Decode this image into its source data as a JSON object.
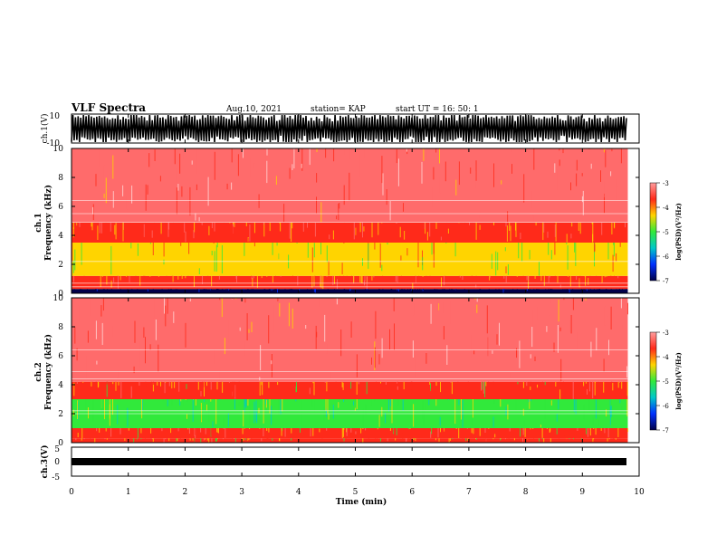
{
  "header": {
    "title": "VLF Spectra",
    "date": "Aug.10, 2021",
    "station": "station= KAP",
    "start": "start  UT  =   16: 50: 1"
  },
  "colorbar": {
    "label": "log(PSD)(V²/Hz)",
    "ticks": [
      "-3",
      "-4",
      "-5",
      "-6",
      "-7"
    ],
    "colors": [
      "#ff9d9d",
      "#ff2a1a",
      "#ffd400",
      "#31e93b",
      "#00c8c8",
      "#0030ff",
      "#00004a"
    ]
  },
  "chart_data": [
    {
      "type": "line",
      "name": "ch.1 waveform",
      "ylabel": "ch.1(V)",
      "ylim": [
        -10,
        10
      ],
      "yticks": [
        "10",
        "-10"
      ],
      "xlim": [
        0,
        10
      ],
      "note_values": "dense noisy voltage trace spanning most of the -10..10 V range for 0 to ~9.8 min"
    },
    {
      "type": "heatmap",
      "name": "ch.1 spectrogram",
      "ylabel": "ch.1\nFrequency  (kHz)",
      "ylim": [
        0,
        10
      ],
      "yticks": [
        "0",
        "2",
        "4",
        "6",
        "8",
        "10"
      ],
      "xlim": [
        0,
        10
      ],
      "data_end_min": 9.8,
      "bands": [
        {
          "freq": [
            0,
            0.3
          ],
          "level": -7.0
        },
        {
          "freq": [
            0.3,
            1.2
          ],
          "level": -3.8
        },
        {
          "freq": [
            1.2,
            3.5
          ],
          "level": -4.3
        },
        {
          "freq": [
            3.5,
            4.9
          ],
          "level": -3.8
        },
        {
          "freq": [
            4.9,
            10
          ],
          "level": -3.4
        }
      ],
      "lines_kHz": [
        0.45,
        0.7,
        2.2,
        4.9,
        5.5,
        6.4
      ]
    },
    {
      "type": "heatmap",
      "name": "ch.2 spectrogram",
      "ylabel": "ch.2\nFrequency  (kHz)",
      "ylim": [
        0,
        10
      ],
      "yticks": [
        "0",
        "2",
        "4",
        "6",
        "8",
        "10"
      ],
      "xlim": [
        0,
        10
      ],
      "data_end_min": 9.8,
      "bands": [
        {
          "freq": [
            0,
            0.3
          ],
          "level": -4.0
        },
        {
          "freq": [
            0.3,
            1.0
          ],
          "level": -3.9
        },
        {
          "freq": [
            1.0,
            3.0
          ],
          "level": -4.8
        },
        {
          "freq": [
            3.0,
            4.2
          ],
          "level": -3.9
        },
        {
          "freq": [
            4.2,
            10
          ],
          "level": -3.4
        }
      ],
      "lines_kHz": [
        2.0,
        2.2,
        4.4,
        4.9,
        6.4
      ]
    },
    {
      "type": "line",
      "name": "ch.3 waveform",
      "ylabel": "ch.3(V)",
      "ylim": [
        -5,
        5
      ],
      "yticks": [
        "5",
        "0",
        "-5"
      ],
      "xlim": [
        0,
        10
      ],
      "level_V": -2,
      "note_values": "narrow constant band around -2 V"
    }
  ],
  "xaxis": {
    "label": "Time  (min)",
    "ticks": [
      "0",
      "1",
      "2",
      "3",
      "4",
      "5",
      "6",
      "7",
      "8",
      "9",
      "10"
    ]
  }
}
